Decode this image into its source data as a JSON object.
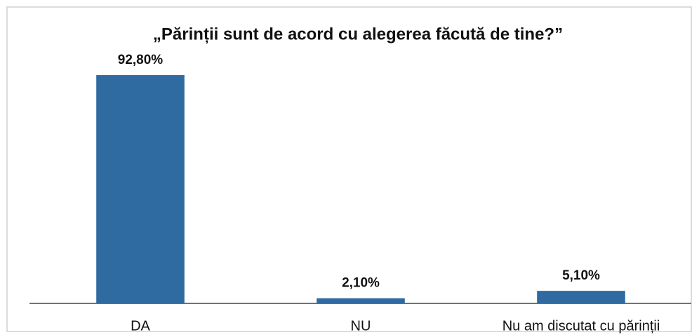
{
  "chart_data": {
    "type": "bar",
    "title": "„Părinții sunt de acord cu alegerea făcută de tine?”",
    "categories": [
      "DA",
      "NU",
      "Nu am discutat cu părinții"
    ],
    "values": [
      92.8,
      2.1,
      5.1
    ],
    "value_labels": [
      "92,80%",
      "2,10%",
      "5,10%"
    ],
    "color": "#2f6aa1"
  }
}
